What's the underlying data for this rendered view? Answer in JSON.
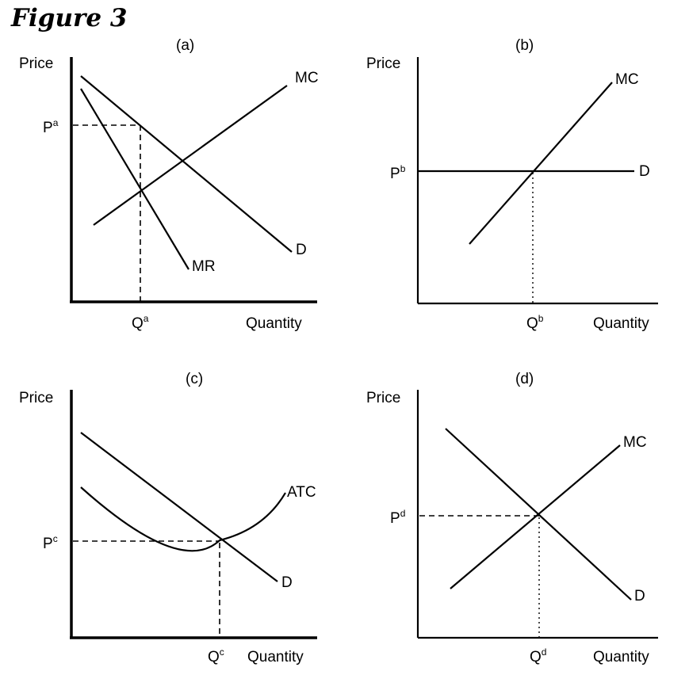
{
  "figure": {
    "title": "Figure 3"
  },
  "panels": {
    "a": {
      "label": "(a)",
      "y_axis": "Price",
      "x_axis": "Quantity",
      "price_label": "P",
      "price_sup": "a",
      "qty_label": "Q",
      "qty_sup": "a",
      "curves": {
        "mc": "MC",
        "mr": "MR",
        "d": "D"
      }
    },
    "b": {
      "label": "(b)",
      "y_axis": "Price",
      "x_axis": "Quantity",
      "price_label": "P",
      "price_sup": "b",
      "qty_label": "Q",
      "qty_sup": "b",
      "curves": {
        "mc": "MC",
        "d": "D"
      }
    },
    "c": {
      "label": "(c)",
      "y_axis": "Price",
      "x_axis": "Quantity",
      "price_label": "P",
      "price_sup": "c",
      "qty_label": "Q",
      "qty_sup": "c",
      "curves": {
        "atc": "ATC",
        "d": "D"
      }
    },
    "d": {
      "label": "(d)",
      "y_axis": "Price",
      "x_axis": "Quantity",
      "price_label": "P",
      "price_sup": "d",
      "qty_label": "Q",
      "qty_sup": "d",
      "curves": {
        "mc": "MC",
        "d": "D"
      }
    }
  }
}
